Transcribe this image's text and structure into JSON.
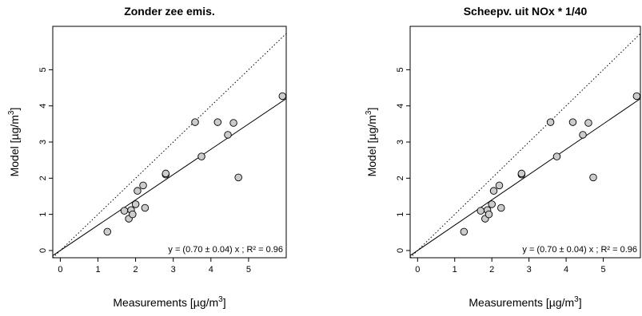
{
  "chart_data": [
    {
      "type": "scatter",
      "title": "Zonder zee emis.",
      "xlabel": "Measurements [µg/m³]",
      "ylabel": "Model [µg/m³]",
      "xlim": [
        -0.2,
        6.0
      ],
      "ylim": [
        -0.2,
        6.2
      ],
      "xticks": [
        0,
        1,
        2,
        3,
        4,
        5
      ],
      "yticks": [
        0,
        1,
        2,
        3,
        4,
        5
      ],
      "grid": false,
      "annotation": "y = (0.70 ± 0.04) x ; R² = 0.96",
      "series": [
        {
          "x": [
            1.25,
            1.7,
            1.82,
            1.88,
            1.92,
            2.0,
            2.05,
            2.2,
            2.25,
            2.8,
            2.8,
            3.58,
            3.75,
            4.18,
            4.45,
            4.6,
            4.73,
            5.9
          ],
          "y": [
            0.52,
            1.1,
            0.88,
            1.12,
            1.0,
            1.28,
            1.65,
            1.8,
            1.18,
            2.1,
            2.13,
            3.55,
            2.6,
            3.55,
            3.2,
            3.53,
            2.02,
            4.27
          ]
        }
      ],
      "fit_line": {
        "slope": 0.7
      },
      "reference_line": {
        "slope": 1.0,
        "style": "dotted"
      }
    },
    {
      "type": "scatter",
      "title": "Scheepv. uit NOx * 1/40",
      "xlabel": "Measurements [µg/m³]",
      "ylabel": "Model [µg/m³]",
      "xlim": [
        -0.2,
        6.0
      ],
      "ylim": [
        -0.2,
        6.2
      ],
      "xticks": [
        0,
        1,
        2,
        3,
        4,
        5
      ],
      "yticks": [
        0,
        1,
        2,
        3,
        4,
        5
      ],
      "grid": false,
      "annotation": "y = (0.70 ± 0.04) x ; R² = 0.96",
      "series": [
        {
          "x": [
            1.25,
            1.7,
            1.82,
            1.88,
            1.92,
            2.0,
            2.05,
            2.2,
            2.25,
            2.8,
            2.8,
            3.58,
            3.75,
            4.18,
            4.45,
            4.6,
            4.73,
            5.9
          ],
          "y": [
            0.52,
            1.1,
            0.88,
            1.12,
            1.0,
            1.28,
            1.65,
            1.8,
            1.18,
            2.1,
            2.13,
            3.55,
            2.6,
            3.55,
            3.2,
            3.53,
            2.02,
            4.27
          ]
        }
      ],
      "fit_line": {
        "slope": 0.7
      },
      "reference_line": {
        "slope": 1.0,
        "style": "dotted"
      }
    }
  ]
}
